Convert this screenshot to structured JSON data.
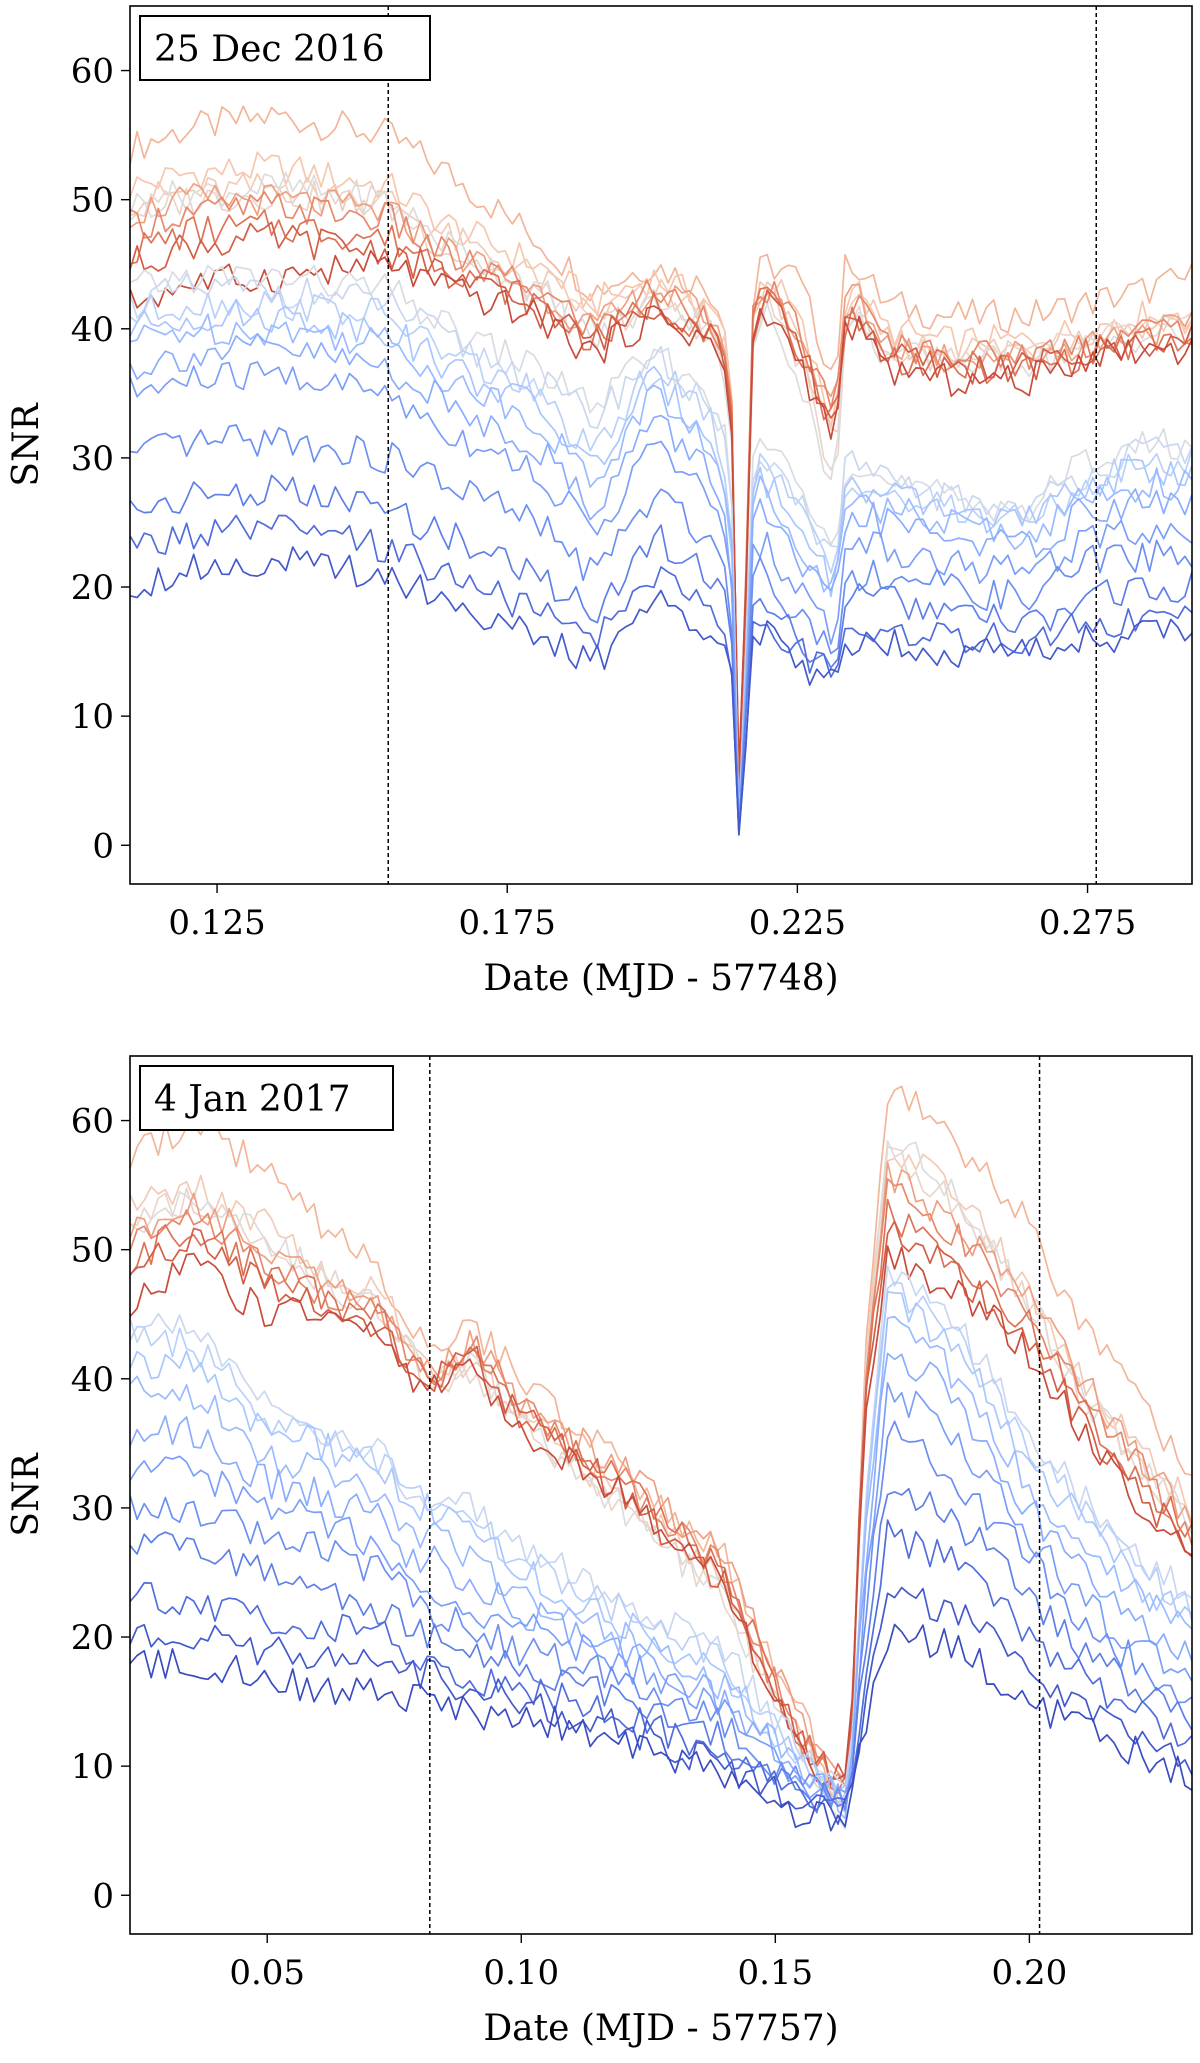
{
  "chart_data": [
    {
      "type": "line",
      "annotation": "25 Dec 2016",
      "xlabel": "Date (MJD - 57748)",
      "ylabel": "SNR",
      "xlim": [
        0.11,
        0.293
      ],
      "ylim": [
        -3,
        65
      ],
      "xticks": [
        0.125,
        0.175,
        0.225,
        0.275
      ],
      "xtick_labels": [
        "0.125",
        "0.175",
        "0.225",
        "0.275"
      ],
      "yticks": [
        0,
        10,
        20,
        30,
        40,
        50,
        60
      ],
      "ytick_labels": [
        "0",
        "10",
        "20",
        "30",
        "40",
        "50",
        "60"
      ],
      "vlines": [
        0.1545,
        0.2765
      ],
      "grid": false,
      "colormap": "coolwarm",
      "x": [
        0.11,
        0.12,
        0.135,
        0.1545,
        0.165,
        0.18,
        0.19,
        0.2,
        0.21,
        0.2135,
        0.215,
        0.2175,
        0.22,
        0.225,
        0.2315,
        0.2335,
        0.24,
        0.25,
        0.265,
        0.275,
        0.285,
        0.293
      ],
      "series": [
        {
          "color": "#f3b599",
          "values": [
            54,
            55.5,
            56.5,
            55,
            52,
            47,
            43,
            45,
            43,
            40,
            1,
            44,
            45,
            44,
            36,
            46,
            42,
            41,
            41,
            42,
            43,
            44
          ]
        },
        {
          "color": "#f7c6ae",
          "values": [
            51,
            52,
            52.5,
            51,
            48,
            45,
            42,
            44,
            42,
            38,
            0.5,
            43,
            44,
            41,
            32,
            44,
            40,
            39,
            39,
            40,
            41,
            41
          ]
        },
        {
          "color": "#f2cbb7",
          "values": [
            50,
            50.5,
            51,
            50,
            47,
            44,
            41,
            43,
            41,
            37,
            0.5,
            42,
            43,
            40,
            30,
            43,
            39,
            38.5,
            38.5,
            39.5,
            40.5,
            40.5
          ]
        },
        {
          "color": "#e9d5cb",
          "values": [
            49,
            50,
            50.5,
            49.5,
            46,
            43,
            40,
            42,
            40,
            36,
            0,
            41,
            42,
            38,
            28,
            42,
            38,
            38,
            38,
            39,
            40,
            40
          ]
        },
        {
          "color": "#dddcdc",
          "values": [
            49.5,
            50.5,
            51,
            50,
            46.5,
            43,
            39,
            42,
            40,
            35,
            0,
            40,
            41,
            37,
            27,
            42,
            38,
            37.5,
            37.5,
            38.5,
            39.5,
            39.5
          ]
        },
        {
          "color": "#efa083",
          "values": [
            49,
            50,
            50,
            49,
            46,
            43,
            40,
            43,
            41,
            38,
            1,
            43,
            43,
            40,
            33,
            44,
            39,
            38,
            38,
            39,
            40,
            40
          ]
        },
        {
          "color": "#e7886b",
          "values": [
            48,
            49,
            49.5,
            48.5,
            45.5,
            43,
            40,
            43,
            41,
            38,
            1.5,
            43,
            43,
            40,
            33,
            43,
            39,
            38,
            38,
            39,
            40,
            40
          ]
        },
        {
          "color": "#dd7355",
          "values": [
            46,
            47.5,
            48,
            47,
            45,
            42,
            39,
            42,
            40,
            37,
            2,
            42,
            42,
            39,
            32,
            42,
            38,
            37,
            37,
            38,
            39,
            39
          ]
        },
        {
          "color": "#d35e45",
          "values": [
            45,
            46.5,
            47,
            46,
            44,
            41.5,
            39,
            42,
            40,
            37,
            2.5,
            42,
            42,
            39,
            32,
            42,
            38,
            37,
            37,
            38,
            39,
            39
          ]
        },
        {
          "color": "#c94b3b",
          "values": [
            42,
            43.5,
            44,
            45,
            43,
            41,
            38,
            41,
            39,
            36,
            3,
            41,
            41,
            38,
            31,
            41,
            37,
            36,
            36,
            38,
            38.5,
            38.5
          ]
        },
        {
          "color": "#d8dce2",
          "values": [
            43,
            44,
            44,
            43,
            40,
            37,
            34,
            38,
            35,
            30,
            0,
            32,
            31,
            28,
            24,
            30,
            28,
            27,
            26,
            30,
            31,
            31
          ]
        },
        {
          "color": "#c9d7f0",
          "values": [
            42,
            43,
            43,
            42,
            39,
            36,
            33,
            38,
            34,
            29,
            0,
            31,
            30,
            27,
            22,
            30,
            28,
            27,
            26,
            29,
            30.5,
            30.5
          ]
        },
        {
          "color": "#b9d0f9",
          "values": [
            41,
            42,
            42,
            41,
            38,
            35,
            30,
            37,
            33,
            28,
            0,
            30,
            29,
            26,
            21,
            29,
            27,
            26,
            25,
            28,
            29.5,
            29.5
          ]
        },
        {
          "color": "#aac7fd",
          "values": [
            40,
            41,
            41,
            40,
            37,
            34,
            29,
            36,
            32,
            27,
            0,
            29,
            28,
            25,
            20,
            28,
            27,
            26,
            25,
            28,
            29,
            29
          ]
        },
        {
          "color": "#9abbff",
          "values": [
            39,
            40,
            40,
            39,
            36,
            33,
            28,
            35,
            31,
            26,
            0,
            28,
            27,
            24,
            19,
            28,
            26,
            25,
            24,
            27,
            28,
            28
          ]
        },
        {
          "color": "#8badfd",
          "values": [
            37,
            38,
            38.5,
            37,
            34,
            31,
            26,
            33,
            29,
            24,
            0,
            26,
            25,
            22,
            18,
            26,
            25,
            24,
            23,
            26,
            26.5,
            26.5
          ]
        },
        {
          "color": "#7b9ff9",
          "values": [
            35,
            36,
            36.5,
            35,
            32,
            29,
            24,
            31,
            27,
            22,
            0,
            24,
            23,
            20,
            16,
            24,
            23,
            22,
            21,
            24,
            24.5,
            24.5
          ]
        },
        {
          "color": "#6c8ff1",
          "values": [
            30,
            31,
            31.5,
            30,
            28,
            25,
            21,
            27,
            24,
            20,
            0,
            22,
            21,
            18,
            15,
            21,
            21,
            20,
            19,
            22,
            22.5,
            22.5
          ]
        },
        {
          "color": "#5e7fe7",
          "values": [
            26,
            27,
            27.5,
            26,
            24,
            21,
            18,
            24,
            21,
            18,
            0,
            20,
            19,
            16,
            14,
            19,
            19,
            18,
            17,
            19,
            20,
            20
          ]
        },
        {
          "color": "#516ddb",
          "values": [
            23,
            24,
            24.5,
            23,
            21,
            18,
            16,
            21,
            19,
            16,
            0,
            18,
            17,
            15,
            13,
            17,
            17,
            16,
            16,
            17,
            17.5,
            17.5
          ]
        },
        {
          "color": "#445acc",
          "values": [
            20,
            21.5,
            22,
            21,
            19,
            16,
            14,
            19,
            17,
            15,
            0,
            17,
            16,
            14,
            12.5,
            16,
            16,
            15,
            15,
            16,
            16.5,
            16.5
          ]
        }
      ]
    },
    {
      "type": "line",
      "annotation": "4 Jan 2017",
      "xlabel": "Date (MJD - 57757)",
      "ylabel": "SNR",
      "xlim": [
        0.023,
        0.232
      ],
      "ylim": [
        -3,
        65
      ],
      "xticks": [
        0.05,
        0.1,
        0.15,
        0.2
      ],
      "xtick_labels": [
        "0.05",
        "0.10",
        "0.15",
        "0.20"
      ],
      "yticks": [
        0,
        10,
        20,
        30,
        40,
        50,
        60
      ],
      "ytick_labels": [
        "0",
        "10",
        "20",
        "30",
        "40",
        "50",
        "60"
      ],
      "vlines": [
        0.082,
        0.202
      ],
      "grid": false,
      "colormap": "coolwarm",
      "x": [
        0.023,
        0.035,
        0.05,
        0.06,
        0.073,
        0.078,
        0.082,
        0.09,
        0.1,
        0.12,
        0.14,
        0.155,
        0.1645,
        0.1675,
        0.172,
        0.178,
        0.186,
        0.2,
        0.21,
        0.222,
        0.232
      ],
      "series": [
        {
          "color": "#f3b599",
          "values": [
            57,
            60,
            56,
            52,
            48,
            44,
            43,
            44,
            40,
            33,
            26,
            14,
            6,
            40,
            62,
            61,
            58,
            52,
            44,
            38,
            32
          ]
        },
        {
          "color": "#f2cbb7",
          "values": [
            53,
            55,
            52,
            49,
            46,
            43,
            41,
            41,
            37,
            31,
            24,
            12,
            6,
            40,
            58,
            57,
            54,
            47,
            40,
            34,
            30
          ]
        },
        {
          "color": "#dddcdc",
          "values": [
            52,
            54.5,
            51,
            48,
            45,
            42,
            40,
            41,
            37,
            30,
            23,
            11,
            6,
            40,
            58,
            57,
            54,
            46,
            39,
            33,
            29
          ]
        },
        {
          "color": "#e9d5cb",
          "values": [
            52,
            54,
            50.5,
            48,
            45,
            42,
            40,
            40.5,
            36.5,
            30,
            23,
            11,
            6.5,
            39,
            57,
            56,
            53,
            46,
            39,
            33,
            29
          ]
        },
        {
          "color": "#efa083",
          "values": [
            51,
            54,
            50,
            48,
            45,
            42,
            40,
            43,
            38,
            33,
            26,
            13,
            8,
            40,
            56,
            54,
            52,
            46,
            40,
            34,
            29
          ]
        },
        {
          "color": "#e7886b",
          "values": [
            50,
            53,
            49,
            47,
            45,
            41,
            40,
            43,
            38,
            32,
            25,
            12,
            8,
            39,
            55,
            53,
            51,
            45,
            39,
            33,
            28
          ]
        },
        {
          "color": "#dd7355",
          "values": [
            49,
            52,
            48,
            46.5,
            44.5,
            41,
            40,
            42,
            37,
            32,
            25,
            12,
            8,
            39,
            53,
            51,
            49,
            44,
            38,
            32,
            28
          ]
        },
        {
          "color": "#d35e45",
          "values": [
            48,
            51,
            47,
            46,
            44,
            40.5,
            40,
            42,
            37,
            31,
            24,
            12,
            8,
            38,
            52,
            50,
            48,
            43,
            37,
            31,
            27
          ]
        },
        {
          "color": "#c94b3b",
          "values": [
            46,
            49,
            45,
            45,
            43,
            40,
            39,
            41,
            36,
            31,
            24,
            11,
            8,
            37,
            50,
            48,
            47,
            42,
            36,
            30,
            26
          ]
        },
        {
          "color": "#c9d7f0",
          "values": [
            44,
            44,
            38,
            36,
            34,
            31,
            31,
            30,
            27,
            23,
            19,
            11,
            7,
            30,
            48,
            47,
            44,
            36,
            31,
            26,
            23
          ]
        },
        {
          "color": "#b9d0f9",
          "values": [
            43,
            43,
            37,
            35.5,
            33.5,
            30.5,
            30.5,
            29,
            26,
            22,
            18,
            10.5,
            7,
            29,
            47,
            46,
            43,
            35,
            30,
            25,
            22
          ]
        },
        {
          "color": "#aac7fd",
          "values": [
            41,
            41,
            36,
            35,
            33,
            30,
            30,
            28,
            25,
            21,
            17,
            10,
            7,
            28,
            46,
            45,
            42,
            34,
            29,
            24,
            21
          ]
        },
        {
          "color": "#9abbff",
          "values": [
            39,
            39,
            34,
            33,
            31,
            28,
            28,
            26,
            23,
            20,
            16,
            10,
            7,
            27,
            44,
            43,
            40,
            32,
            27,
            23,
            20
          ]
        },
        {
          "color": "#8badfd",
          "values": [
            36,
            36,
            32,
            31,
            29,
            26,
            26,
            24,
            22,
            19,
            15,
            9.5,
            7,
            25,
            42,
            41,
            38,
            30,
            25,
            21,
            18
          ]
        },
        {
          "color": "#7b9ff9",
          "values": [
            33,
            33,
            30,
            29,
            27,
            25,
            24,
            22,
            21,
            18,
            14,
            9,
            7,
            23,
            39,
            38,
            35,
            28,
            23,
            19,
            17
          ]
        },
        {
          "color": "#6c8ff1",
          "values": [
            30,
            30,
            28,
            27,
            25,
            23,
            22,
            21,
            19,
            17,
            13,
            8.5,
            7,
            21,
            36,
            35,
            32,
            26,
            21,
            18,
            15
          ]
        },
        {
          "color": "#5e7fe7",
          "values": [
            27,
            27,
            25,
            24,
            22,
            21,
            20,
            19,
            18,
            15,
            12,
            8,
            7,
            19,
            32,
            31,
            29,
            23,
            19,
            16,
            14
          ]
        },
        {
          "color": "#516ddb",
          "values": [
            23,
            23,
            21,
            21,
            20,
            19,
            18,
            17,
            16,
            14,
            11,
            7.5,
            7,
            17,
            28,
            27,
            26,
            20,
            17,
            14,
            12
          ]
        },
        {
          "color": "#445acc",
          "values": [
            20,
            20,
            19,
            18,
            18,
            17,
            17,
            16,
            15,
            13,
            10,
            7,
            6.5,
            15,
            24,
            23,
            22,
            17,
            15,
            12,
            10
          ]
        },
        {
          "color": "#3b4cc0",
          "values": [
            18,
            18,
            17,
            16,
            16,
            15,
            15,
            14,
            14,
            12,
            9,
            6,
            6,
            13,
            20,
            20,
            19,
            15,
            13,
            11,
            9
          ]
        }
      ]
    }
  ]
}
